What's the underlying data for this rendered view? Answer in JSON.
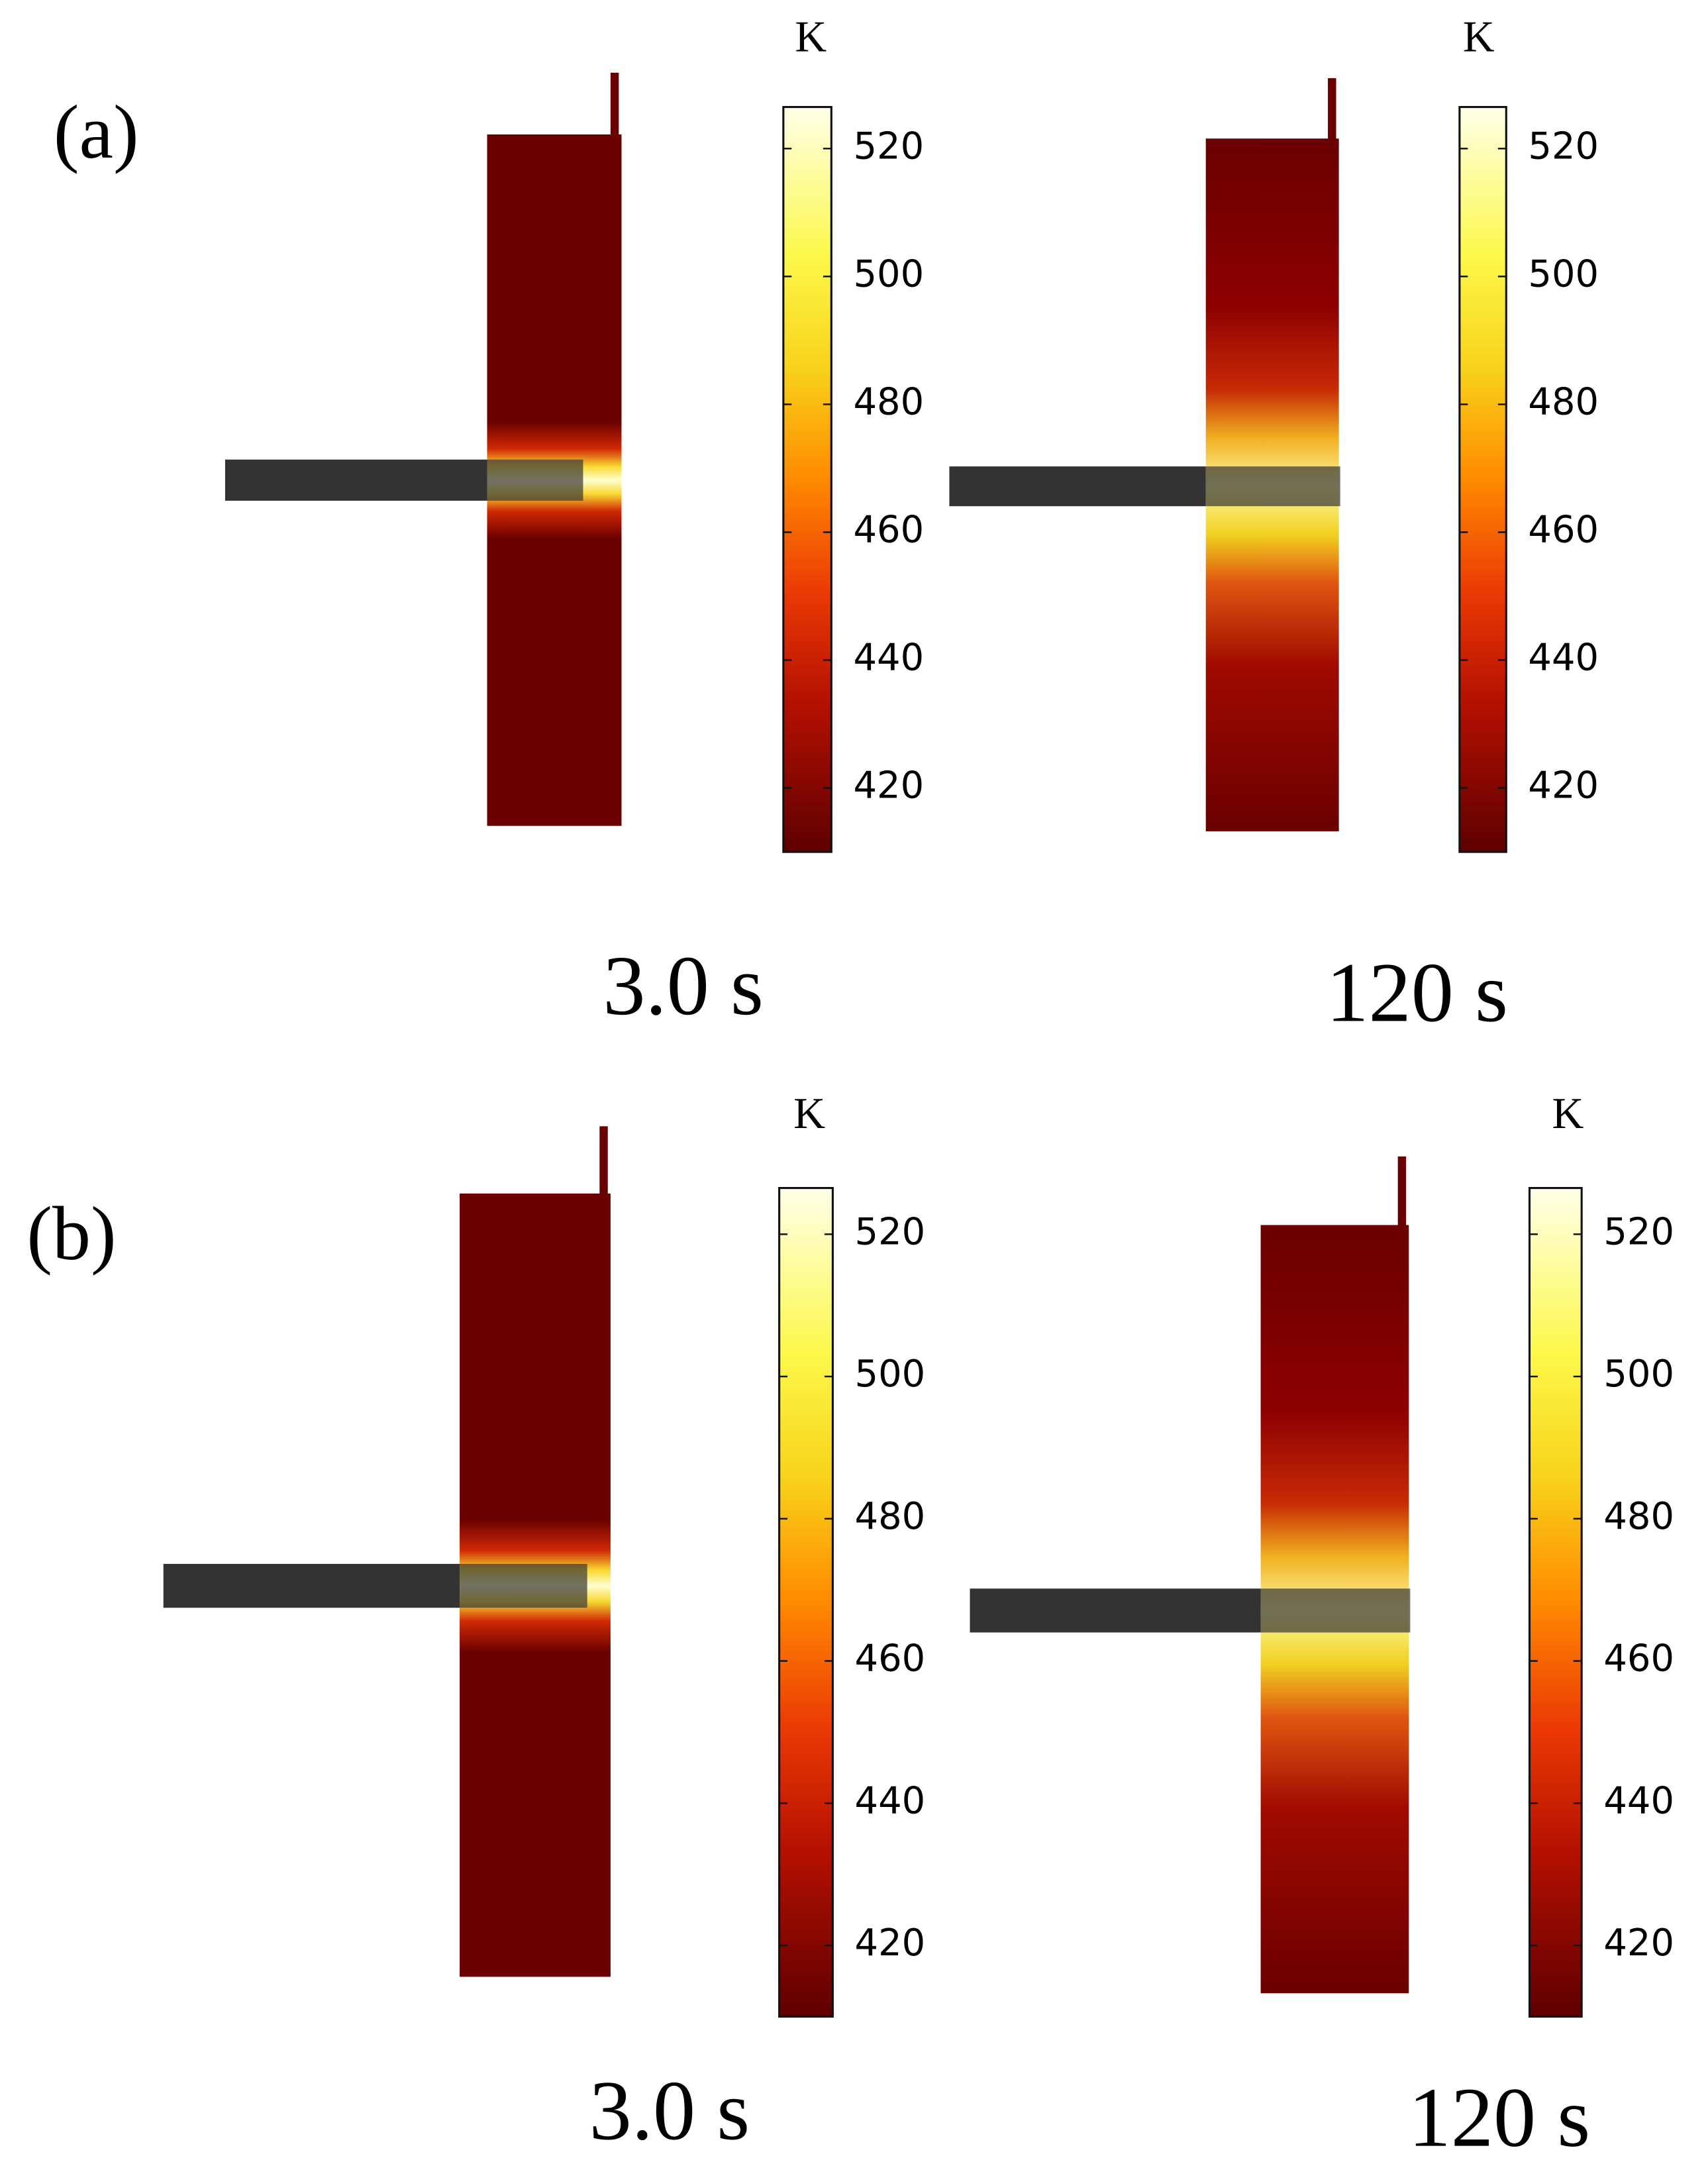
{
  "panels": [
    {
      "label": "(a)",
      "plots": [
        {
          "time": "3.0 s",
          "unit": "K",
          "clim": [
            410,
            526.5
          ],
          "ticks": [
            420,
            440,
            460,
            480,
            500,
            520
          ]
        },
        {
          "time": "120 s",
          "unit": "K",
          "clim": [
            410,
            526.5
          ],
          "ticks": [
            420,
            440,
            460,
            480,
            500,
            520
          ]
        }
      ]
    },
    {
      "label": "(b)",
      "plots": [
        {
          "time": "3.0 s",
          "unit": "K",
          "clim": [
            410,
            526.5
          ],
          "ticks": [
            420,
            440,
            460,
            480,
            500,
            520
          ]
        },
        {
          "time": "120 s",
          "unit": "K",
          "clim": [
            410,
            526.5
          ],
          "ticks": [
            420,
            440,
            460,
            480,
            500,
            520
          ]
        }
      ]
    }
  ]
}
